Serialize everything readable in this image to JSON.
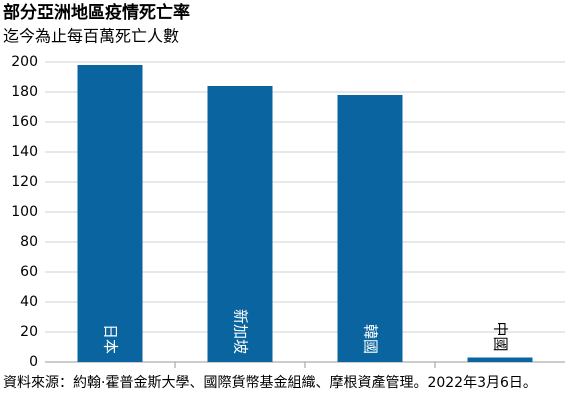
{
  "chart_data": {
    "type": "bar",
    "title": "部分亞洲地區疫情死亡率",
    "subtitle": "迄今為止每百萬死亡人數",
    "categories": [
      "日本",
      "新加坡",
      "韓國",
      "中國"
    ],
    "values": [
      198,
      184,
      178,
      3
    ],
    "color": "#0a64a0",
    "ylim": [
      0,
      200
    ],
    "yticks": [
      0,
      20,
      40,
      60,
      80,
      100,
      120,
      140,
      160,
      180,
      200
    ],
    "grid": true,
    "source": "資料來源：約翰·霍普金斯大學、國際貨幣基金組織、摩根資產管理。2022年3月6日。"
  }
}
